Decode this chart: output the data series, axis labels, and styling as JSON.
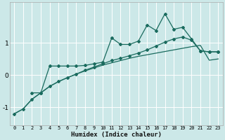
{
  "xlabel": "Humidex (Indice chaleur)",
  "bg_color": "#cce8e8",
  "line_color": "#1a6b5e",
  "grid_color": "#ffffff",
  "xlim": [
    -0.5,
    23.5
  ],
  "ylim": [
    -1.55,
    2.25
  ],
  "yticks": [
    -1,
    0,
    1
  ],
  "xticks": [
    0,
    1,
    2,
    3,
    4,
    5,
    6,
    7,
    8,
    9,
    10,
    11,
    12,
    13,
    14,
    15,
    16,
    17,
    18,
    19,
    20,
    21,
    22,
    23
  ],
  "line1_x": [
    0,
    1,
    2,
    3,
    4,
    5,
    6,
    7,
    8,
    9,
    10,
    11,
    12,
    13,
    14,
    15,
    16,
    17,
    18,
    19,
    20,
    21,
    22,
    23
  ],
  "line1_y": [
    -1.2,
    -1.05,
    -0.75,
    -0.55,
    -0.35,
    -0.2,
    -0.08,
    0.03,
    0.13,
    0.22,
    0.31,
    0.38,
    0.45,
    0.52,
    0.58,
    0.63,
    0.68,
    0.73,
    0.78,
    0.83,
    0.88,
    0.92,
    0.46,
    0.5
  ],
  "line2_x": [
    0,
    1,
    2,
    3,
    4,
    5,
    6,
    7,
    8,
    9,
    10,
    11,
    12,
    13,
    14,
    15,
    16,
    17,
    18,
    19,
    20,
    21,
    22,
    23
  ],
  "line2_y": [
    -1.2,
    -1.05,
    -0.75,
    -0.55,
    -0.35,
    -0.2,
    -0.08,
    0.03,
    0.15,
    0.25,
    0.35,
    0.45,
    0.52,
    0.6,
    0.68,
    0.78,
    0.9,
    1.02,
    1.12,
    1.18,
    1.08,
    0.75,
    0.72,
    0.72
  ],
  "line3_x": [
    2,
    3,
    4,
    5,
    6,
    7,
    8,
    9,
    10,
    11,
    12,
    13,
    14,
    15,
    16,
    17,
    18,
    19,
    20,
    21,
    22,
    23
  ],
  "line3_y": [
    -0.55,
    -0.55,
    0.28,
    0.28,
    0.28,
    0.28,
    0.3,
    0.35,
    0.4,
    1.15,
    0.95,
    0.95,
    1.05,
    1.55,
    1.38,
    1.9,
    1.42,
    1.48,
    1.12,
    0.75,
    0.72,
    0.72
  ],
  "marker": "D",
  "markersize": 2.0,
  "linewidth": 0.9
}
